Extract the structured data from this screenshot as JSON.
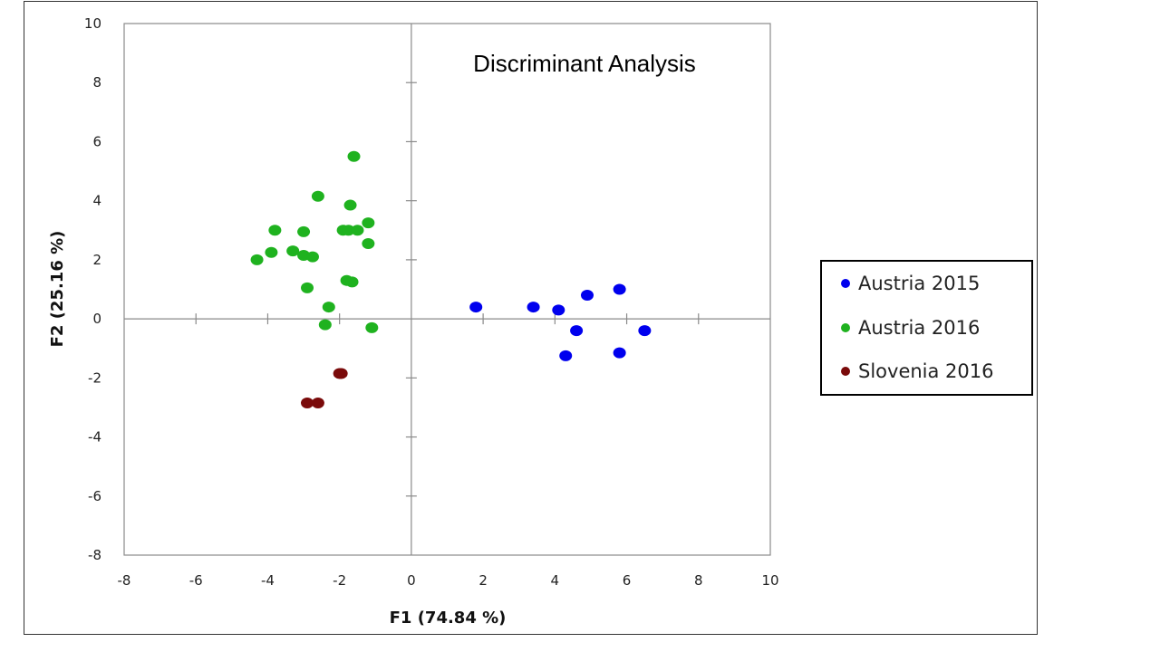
{
  "chart_data": {
    "type": "scatter",
    "title": "Discriminant Analysis",
    "xlabel": "F1 (74.84 %)",
    "ylabel": "F2 (25.16 %)",
    "xlim": [
      -8,
      10
    ],
    "ylim": [
      -8,
      10
    ],
    "xticks": [
      -8,
      -6,
      -4,
      -2,
      0,
      2,
      4,
      6,
      8,
      10
    ],
    "yticks": [
      -8,
      -6,
      -4,
      -2,
      0,
      2,
      4,
      6,
      8,
      10
    ],
    "grid": false,
    "legend_position": "right",
    "series": [
      {
        "name": "Austria 2015",
        "color": "#0000ee",
        "points": [
          [
            1.8,
            0.4
          ],
          [
            3.4,
            0.4
          ],
          [
            4.1,
            0.3
          ],
          [
            4.9,
            0.8
          ],
          [
            5.8,
            1.0
          ],
          [
            4.6,
            -0.4
          ],
          [
            6.5,
            -0.4
          ],
          [
            4.3,
            -1.25
          ],
          [
            5.8,
            -1.15
          ]
        ]
      },
      {
        "name": "Austria 2016",
        "color": "#1fb21f",
        "points": [
          [
            -1.6,
            5.5
          ],
          [
            -2.6,
            4.15
          ],
          [
            -1.7,
            3.85
          ],
          [
            -3.8,
            3.0
          ],
          [
            -3.0,
            2.95
          ],
          [
            -1.2,
            3.25
          ],
          [
            -1.9,
            3.0
          ],
          [
            -1.75,
            3.0
          ],
          [
            -1.5,
            3.0
          ],
          [
            -1.2,
            2.55
          ],
          [
            -3.9,
            2.25
          ],
          [
            -3.3,
            2.3
          ],
          [
            -3.0,
            2.15
          ],
          [
            -2.75,
            2.1
          ],
          [
            -4.3,
            2.0
          ],
          [
            -1.8,
            1.3
          ],
          [
            -1.65,
            1.25
          ],
          [
            -2.9,
            1.05
          ],
          [
            -2.3,
            0.4
          ],
          [
            -2.4,
            -0.2
          ],
          [
            -1.1,
            -0.3
          ]
        ]
      },
      {
        "name": "Slovenia 2016",
        "color": "#7a0a0a",
        "points": [
          [
            -2.0,
            -1.85
          ],
          [
            -1.95,
            -1.85
          ],
          [
            -2.9,
            -2.85
          ],
          [
            -2.6,
            -2.85
          ]
        ]
      }
    ]
  }
}
